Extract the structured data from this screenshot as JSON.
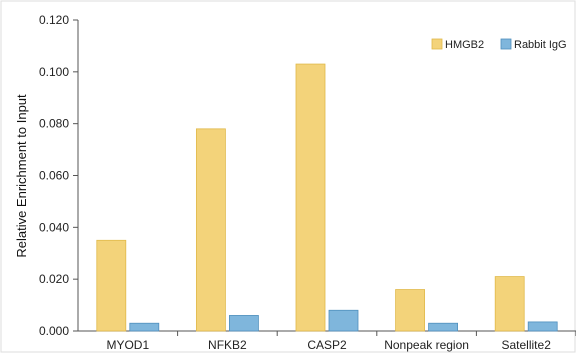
{
  "chart_data": {
    "type": "bar",
    "title": "",
    "xlabel": "",
    "ylabel": "Relative Enrichment to Input",
    "categories": [
      "MYOD1",
      "NFKB2",
      "CASP2",
      "Nonpeak region",
      "Satellite2"
    ],
    "series": [
      {
        "name": "HMGB2",
        "values": [
          0.035,
          0.078,
          0.103,
          0.016,
          0.021
        ],
        "color": "#f3d37a"
      },
      {
        "name": "Rabbit IgG",
        "values": [
          0.003,
          0.006,
          0.008,
          0.003,
          0.0035
        ],
        "color": "#7fb6dc"
      }
    ],
    "ylim": [
      0,
      0.12
    ],
    "yticks": [
      "0.000",
      "0.020",
      "0.040",
      "0.060",
      "0.080",
      "0.100",
      "0.120"
    ],
    "ytick_values": [
      0,
      0.02,
      0.04,
      0.06,
      0.08,
      0.1,
      0.12
    ],
    "grid": false,
    "legend_position": "top-right"
  }
}
